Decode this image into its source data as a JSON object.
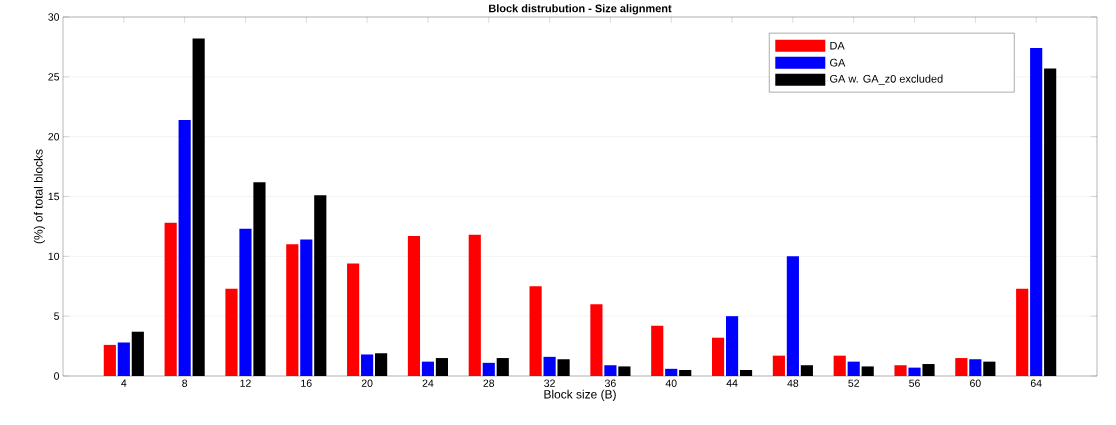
{
  "chart_data": {
    "type": "bar",
    "title": "Block distrubution - Size alignment",
    "xlabel": "Block size (B)",
    "ylabel": "(%) of total blocks",
    "categories": [
      "4",
      "8",
      "12",
      "16",
      "20",
      "24",
      "28",
      "32",
      "36",
      "40",
      "44",
      "48",
      "52",
      "56",
      "60",
      "64"
    ],
    "series": [
      {
        "name": "DA",
        "color": "#ff0000",
        "values": [
          2.6,
          12.8,
          7.3,
          11.0,
          9.4,
          11.7,
          11.8,
          7.5,
          6.0,
          4.2,
          3.2,
          1.7,
          1.7,
          0.9,
          1.5,
          7.3
        ]
      },
      {
        "name": "GA",
        "color": "#0000ff",
        "values": [
          2.8,
          21.4,
          12.3,
          11.4,
          1.8,
          1.2,
          1.1,
          1.6,
          0.9,
          0.6,
          5.0,
          10.0,
          1.2,
          0.7,
          1.4,
          27.4
        ]
      },
      {
        "name": "GA w. GA_z0 excluded",
        "color": "#000000",
        "values": [
          3.7,
          28.2,
          16.2,
          15.1,
          1.9,
          1.5,
          1.5,
          1.4,
          0.8,
          0.5,
          0.5,
          0.9,
          0.8,
          1.0,
          1.2,
          25.7
        ]
      }
    ],
    "ylim": [
      0,
      30
    ],
    "yticks": [
      0,
      5,
      10,
      15,
      20,
      25,
      30
    ],
    "grid": "y",
    "legend": "top right"
  }
}
